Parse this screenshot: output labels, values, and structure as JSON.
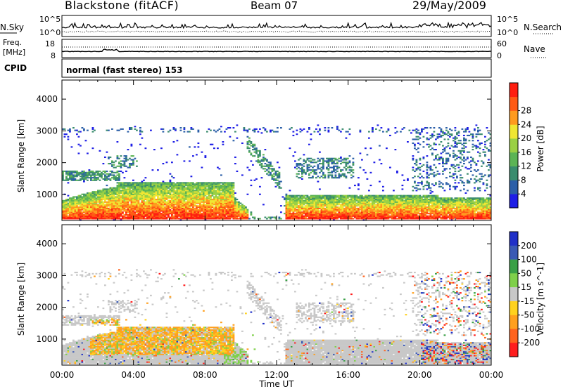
{
  "header": {
    "station": "Blackstone (fitACF)",
    "beam": "Beam 07",
    "date": "29/May/2009"
  },
  "noise_panel": {
    "left_label": "N.Sky",
    "right_label": "N.Search",
    "left_ticks": [
      "10^5",
      "10^0"
    ],
    "right_ticks": [
      "10^5",
      "10^0"
    ]
  },
  "freq_panel": {
    "left_label_1": "Freq.",
    "left_label_2": "[MHz]",
    "right_label": "Nave",
    "left_ticks": [
      "18",
      "8"
    ],
    "right_ticks": [
      "60",
      "0"
    ]
  },
  "cpid": {
    "label": "CPID",
    "text": "normal (fast stereo) 153"
  },
  "chart_data": [
    {
      "type": "heatmap",
      "title": "",
      "xlabel": "",
      "ylabel": "Slant Range [km]",
      "x_ticks": [
        "00:00",
        "04:00",
        "08:00",
        "12:00",
        "16:00",
        "20:00",
        "00:00"
      ],
      "y_ticks": [
        "1000",
        "2000",
        "3000",
        "4000"
      ],
      "ylim": [
        180,
        4600
      ],
      "colorbar_label": "Power [dB]",
      "colorbar_ticks": [
        "4",
        "8",
        "12",
        "16",
        "20",
        "24",
        "28"
      ],
      "colorbar_colors": [
        "#1e1ee6",
        "#2b5fa8",
        "#3a8c6e",
        "#5cb455",
        "#9ad044",
        "#f0e632",
        "#ff9a1e",
        "#ff5a14",
        "#ff1e10"
      ],
      "clim": [
        0,
        30
      ]
    },
    {
      "type": "heatmap",
      "title": "",
      "xlabel": "Time UT",
      "ylabel": "Slant Range [km]",
      "x_ticks": [
        "00:00",
        "04:00",
        "08:00",
        "12:00",
        "16:00",
        "20:00",
        "00:00"
      ],
      "y_ticks": [
        "1000",
        "2000",
        "3000",
        "4000"
      ],
      "ylim": [
        180,
        4600
      ],
      "colorbar_label": "Velocity [m s^-1]",
      "colorbar_ticks": [
        "200",
        "100",
        "50",
        "15",
        "-15",
        "-50",
        "-100",
        "-200"
      ],
      "colorbar_colors": [
        "#2030c8",
        "#3a5ab4",
        "#3aa046",
        "#7fd04a",
        "#c8c8c8",
        "#ffd21e",
        "#ffa01e",
        "#ff641e",
        "#ff1e1e"
      ],
      "clim": [
        -250,
        250
      ]
    }
  ]
}
